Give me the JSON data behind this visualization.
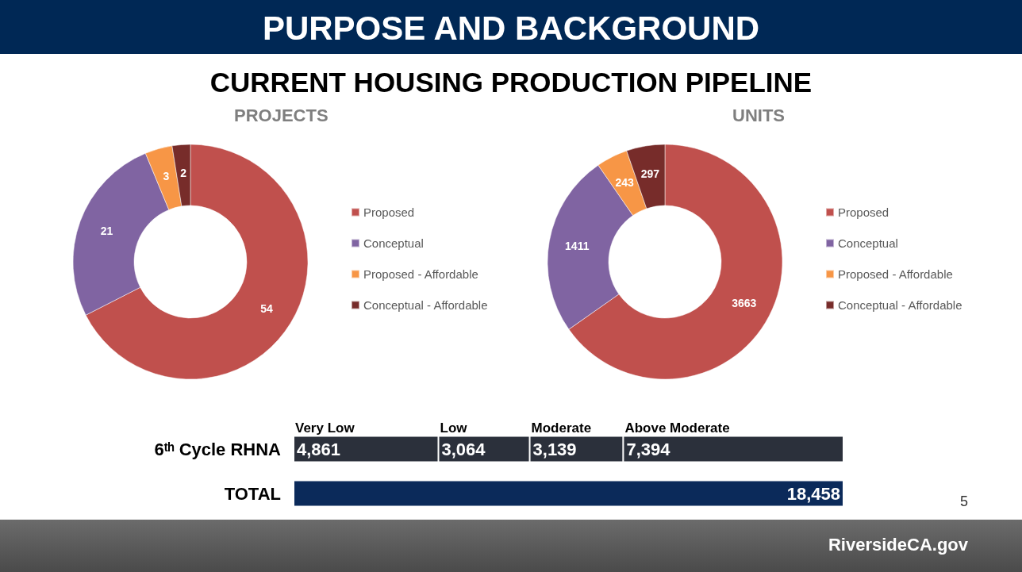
{
  "chart_data": [
    {
      "type": "other",
      "title": "PURPOSE AND BACKGROUND",
      "subtitle": "CURRENT HOUSING PRODUCTION PIPELINE",
      "annotations": [
        "5",
        "RiversideCA.gov"
      ]
    },
    {
      "type": "donut",
      "title": "PROJECTS",
      "categories": [
        "Proposed",
        "Conceptual",
        "Proposed - Affordable",
        "Conceptual - Affordable"
      ],
      "values": [
        54,
        21,
        3,
        2
      ],
      "colors": [
        "#c0504d",
        "#8064a2",
        "#f79646",
        "#772c2a"
      ],
      "data_labels": true,
      "legend": "right"
    },
    {
      "type": "donut",
      "title": "UNITS",
      "categories": [
        "Proposed",
        "Conceptual",
        "Proposed - Affordable",
        "Conceptual - Affordable"
      ],
      "values": [
        3663,
        1411,
        243,
        297
      ],
      "colors": [
        "#c0504d",
        "#8064a2",
        "#f79646",
        "#772c2a"
      ],
      "data_labels": true,
      "legend": "right"
    },
    {
      "type": "bar",
      "orientation": "horizontal",
      "stacked": true,
      "categories": [
        "6ᵗʰ Cycle RHNA",
        "TOTAL"
      ],
      "series": [
        {
          "name": "Very Low",
          "color": "#2b303b",
          "values": [
            4861,
            null
          ],
          "value_labels": [
            "4,861",
            null
          ]
        },
        {
          "name": "Low",
          "color": "#2b303b",
          "values": [
            3064,
            null
          ],
          "value_labels": [
            "3,064",
            null
          ]
        },
        {
          "name": "Moderate",
          "color": "#2b303b",
          "values": [
            3139,
            null
          ],
          "value_labels": [
            "3,139",
            null
          ]
        },
        {
          "name": "Above Moderate",
          "color": "#2b303b",
          "values": [
            7394,
            null
          ],
          "value_labels": [
            "7,394",
            null
          ]
        },
        {
          "color": "#0b2a5a",
          "values": [
            null,
            18458
          ],
          "value_labels": [
            null,
            "18,458"
          ]
        }
      ]
    }
  ]
}
